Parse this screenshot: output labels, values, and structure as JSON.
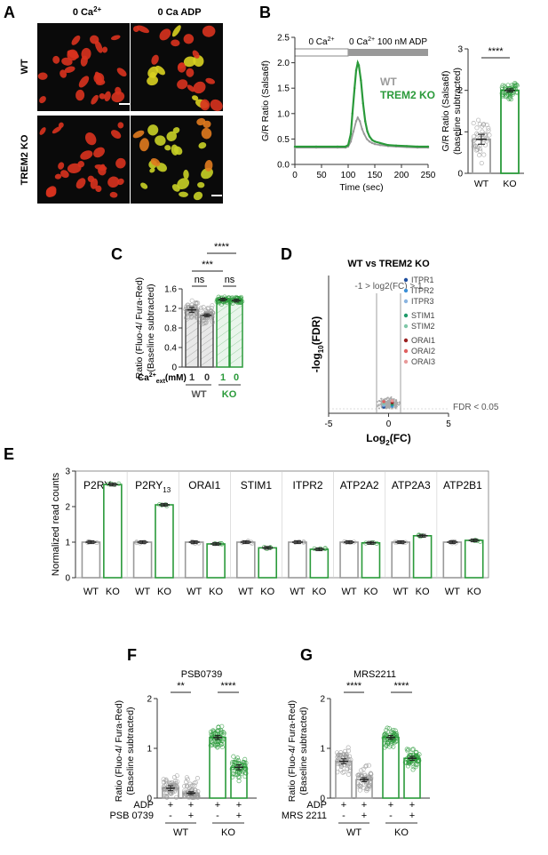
{
  "panel_letters": {
    "A": "A",
    "B": "B",
    "C": "C",
    "D": "D",
    "E": "E",
    "F": "F",
    "G": "G"
  },
  "colors": {
    "wt": "#9a9a9a",
    "ko": "#2a9a3a",
    "bar_edge_wt": "#8a8a8a",
    "bar_edge_ko": "#238a35",
    "micro_bg": "#0a0a0a"
  },
  "panelA": {
    "col_headers": [
      "0 Ca",
      "0 Ca ADP"
    ],
    "col_sup": "2+",
    "row_labels": [
      "WT",
      "TREM2 KO"
    ]
  },
  "chart_data": [
    {
      "id": "B_trace",
      "type": "line",
      "ylabel": "G/R Ratio (Salsa6f)",
      "xlabel": "Time (sec)",
      "xticks": [
        0,
        50,
        100,
        150,
        200,
        250
      ],
      "yticks": [
        0.0,
        0.5,
        1.0,
        1.5,
        2.0,
        2.5
      ],
      "xlim": [
        0,
        250
      ],
      "ylim": [
        0,
        2.5
      ],
      "stim_labels": [
        "0 Ca",
        "0 Ca",
        "100 nM ADP"
      ],
      "stim_sup": "2+",
      "legend": [
        "WT",
        "TREM2 KO"
      ],
      "series": [
        {
          "name": "WT",
          "x": [
            0,
            40,
            80,
            95,
            100,
            105,
            110,
            115,
            118,
            122,
            126,
            130,
            135,
            140,
            145,
            150,
            160,
            175,
            190,
            210,
            230,
            250
          ],
          "y": [
            0.33,
            0.33,
            0.33,
            0.33,
            0.35,
            0.45,
            0.65,
            0.85,
            0.92,
            0.85,
            0.7,
            0.6,
            0.5,
            0.45,
            0.42,
            0.4,
            0.38,
            0.36,
            0.35,
            0.34,
            0.33,
            0.33
          ]
        },
        {
          "name": "TREM2 KO",
          "x": [
            0,
            40,
            80,
            95,
            100,
            105,
            108,
            112,
            115,
            118,
            120,
            124,
            128,
            132,
            136,
            140,
            145,
            150,
            160,
            175,
            190,
            210,
            230,
            250
          ],
          "y": [
            0.35,
            0.35,
            0.35,
            0.35,
            0.38,
            0.6,
            1.0,
            1.5,
            1.85,
            2.0,
            1.95,
            1.65,
            1.2,
            0.85,
            0.65,
            0.55,
            0.48,
            0.45,
            0.42,
            0.38,
            0.37,
            0.36,
            0.35,
            0.35
          ]
        }
      ]
    },
    {
      "id": "B_bar",
      "type": "bar",
      "ylabel": "G/R Ratio (Salsa6f)",
      "ylabel2": "(baseline subtracted)",
      "categories": [
        "WT",
        "KO"
      ],
      "values": [
        0.82,
        2.0
      ],
      "sem": [
        0.12,
        0.04
      ],
      "yticks": [
        0,
        1,
        2,
        3
      ],
      "ylim": [
        0,
        3
      ],
      "sig": "****"
    },
    {
      "id": "C",
      "type": "bar",
      "ylabel": "Ratio (Fluo-4/ Fura-Red)",
      "ylabel2": "(Baseline subtracted)",
      "categories": [
        "1",
        "0",
        "1",
        "0"
      ],
      "groups": [
        "WT",
        "KO"
      ],
      "values": [
        1.17,
        1.06,
        1.38,
        1.36
      ],
      "sem": [
        0.05,
        0.03,
        0.03,
        0.03
      ],
      "yticks": [
        0,
        0.4,
        0.8,
        1.2,
        1.6
      ],
      "ylim": [
        0,
        1.6
      ],
      "ytick_labels": [
        "0",
        "0.4",
        "0.8",
        "1.2",
        "1.6"
      ],
      "xprefix": "Ca",
      "xprefix_sup": "2+",
      "xprefix_sub": "ext",
      "xprefix_unit": "(mM)",
      "sig": [
        "ns",
        "ns",
        "***",
        "****"
      ]
    },
    {
      "id": "D",
      "type": "scatter",
      "title": "WT vs TREM2 KO",
      "xlabel": "Log",
      "xlabel_sub": "2",
      "xlabel_rest": "(FC)",
      "ylabel": "-log",
      "ylabel_sub": "10",
      "ylabel_rest": "(FDR)",
      "xticks": [
        -5,
        0,
        5
      ],
      "xlim": [
        -5,
        5
      ],
      "threshold_label": "-1 > log2(FC) > 1",
      "fdr_label": "FDR < 0.05",
      "legend": [
        {
          "name": "ITPR1",
          "color": "#1f4e9e"
        },
        {
          "name": "ITPR2",
          "color": "#3a8fd6"
        },
        {
          "name": "ITPR3",
          "color": "#8ab4e0"
        },
        {
          "name": "STIM1",
          "color": "#1f9a6a"
        },
        {
          "name": "STIM2",
          "color": "#7fc7a8"
        },
        {
          "name": "ORAI1",
          "color": "#9a2020"
        },
        {
          "name": "ORAI2",
          "color": "#e06060"
        },
        {
          "name": "ORAI3",
          "color": "#e89a9a"
        }
      ]
    },
    {
      "id": "E",
      "type": "bar",
      "ylabel": "Normalized read counts",
      "yticks": [
        0,
        1,
        2,
        3
      ],
      "ylim": [
        0,
        3
      ],
      "genes": [
        {
          "name": "P2RY",
          "sub": "12",
          "wt": 1.0,
          "ko": 2.62
        },
        {
          "name": "P2RY",
          "sub": "13",
          "wt": 1.0,
          "ko": 2.05
        },
        {
          "name": "ORAI1",
          "sub": "",
          "wt": 1.0,
          "ko": 0.95
        },
        {
          "name": "STIM1",
          "sub": "",
          "wt": 1.0,
          "ko": 0.84
        },
        {
          "name": "ITPR2",
          "sub": "",
          "wt": 1.0,
          "ko": 0.8
        },
        {
          "name": "ATP2A2",
          "sub": "",
          "wt": 1.0,
          "ko": 0.98
        },
        {
          "name": "ATP2A3",
          "sub": "",
          "wt": 1.0,
          "ko": 1.18
        },
        {
          "name": "ATP2B1",
          "sub": "",
          "wt": 1.0,
          "ko": 1.05
        }
      ],
      "xlabels": [
        "WT",
        "KO"
      ]
    },
    {
      "id": "F",
      "type": "bar",
      "title": "PSB0739",
      "ylabel": "Ratio (Fluo-4/ Fura-Red)",
      "ylabel2": "(Baseline subtracted)",
      "values": [
        0.2,
        0.1,
        1.22,
        0.62
      ],
      "sem": [
        0.05,
        0.03,
        0.04,
        0.05
      ],
      "yticks": [
        0,
        1,
        2
      ],
      "ylim": [
        0,
        2
      ],
      "row1_label": "ADP",
      "row1": [
        "+",
        "+",
        "+",
        "+"
      ],
      "row2_label": "PSB 0739",
      "row2": [
        "-",
        "+",
        "-",
        "+"
      ],
      "groups": [
        "WT",
        "KO"
      ],
      "sig": [
        "**",
        "****"
      ]
    },
    {
      "id": "G",
      "type": "bar",
      "title": "MRS2211",
      "ylabel": "Ratio (Fluo-4/ Fura-Red)",
      "ylabel2": "(Baseline subtracted)",
      "values": [
        0.74,
        0.37,
        1.22,
        0.8
      ],
      "sem": [
        0.05,
        0.04,
        0.04,
        0.04
      ],
      "yticks": [
        0,
        1,
        2
      ],
      "ylim": [
        0,
        2
      ],
      "row1_label": "ADP",
      "row1": [
        "+",
        "+",
        "+",
        "+"
      ],
      "row2_label": "MRS 2211",
      "row2": [
        "-",
        "+",
        "-",
        "+"
      ],
      "groups": [
        "WT",
        "KO"
      ],
      "sig": [
        "****",
        "****"
      ]
    }
  ]
}
